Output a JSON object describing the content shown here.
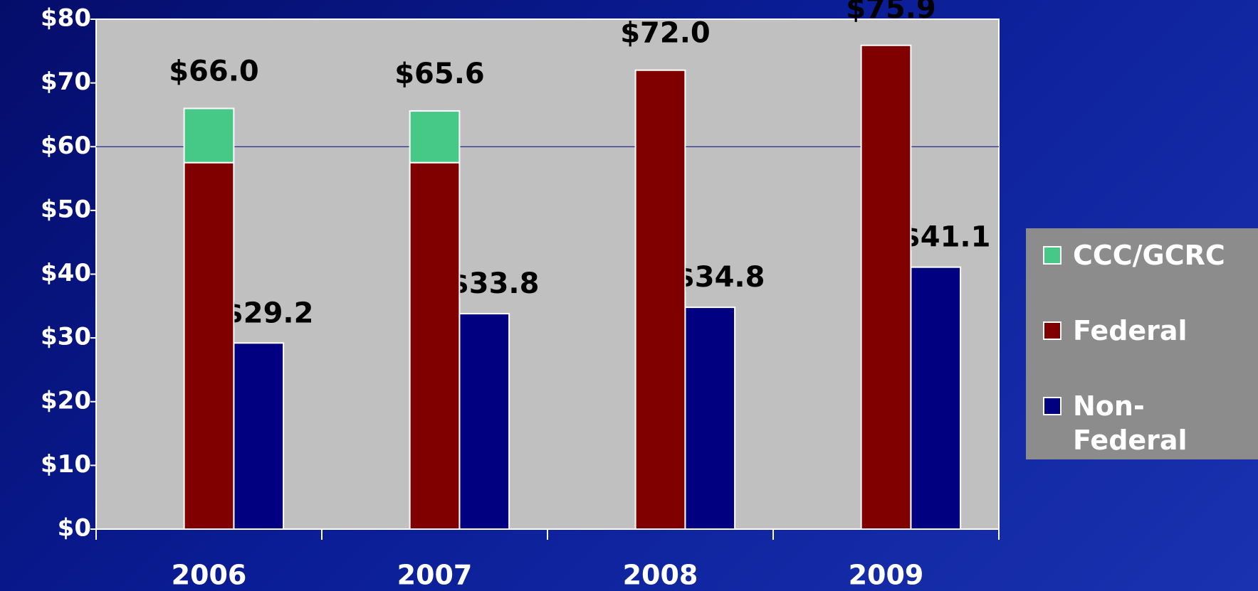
{
  "chart_data": {
    "type": "bar",
    "categories": [
      "2006",
      "2007",
      "2008",
      "2009"
    ],
    "series": [
      {
        "name": "CCC/GCRC",
        "color": "#46c886",
        "stack": "a",
        "values": [
          8.5,
          8.1,
          null,
          null
        ]
      },
      {
        "name": "Federal",
        "color": "#800000",
        "stack": "a",
        "values": [
          57.5,
          57.5,
          72.0,
          75.9
        ]
      },
      {
        "name": "Non-Federal",
        "color": "#000080",
        "stack": "b",
        "values": [
          29.2,
          33.8,
          34.8,
          41.1
        ],
        "value_labels": [
          "$29.2",
          "$33.8",
          "$34.8",
          "$41.1"
        ]
      }
    ],
    "totals": {
      "values": [
        66.0,
        65.6,
        72.0,
        75.9
      ],
      "value_labels": [
        "$66.0",
        "$65.6",
        "$72.0",
        "$75.9"
      ]
    },
    "ylim": [
      0,
      80
    ],
    "yticks": [
      {
        "value": 0,
        "label": "$0"
      },
      {
        "value": 10,
        "label": "$10"
      },
      {
        "value": 20,
        "label": "$20"
      },
      {
        "value": 30,
        "label": "$30"
      },
      {
        "value": 40,
        "label": "$40"
      },
      {
        "value": 50,
        "label": "$50"
      },
      {
        "value": 60,
        "label": "$60"
      },
      {
        "value": 70,
        "label": "$70"
      },
      {
        "value": 80,
        "label": "$80"
      }
    ],
    "gridlines": [
      60
    ],
    "legend": "right"
  }
}
